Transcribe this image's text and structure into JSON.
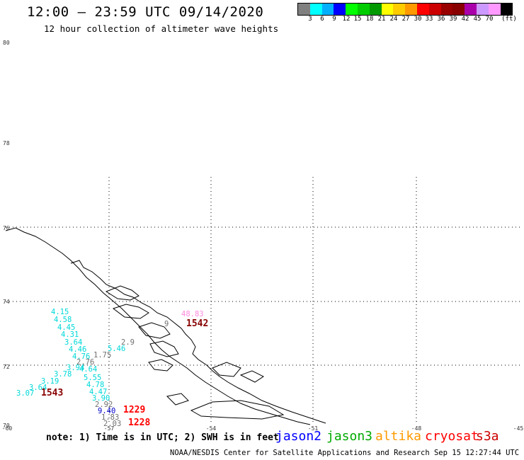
{
  "header": {
    "title": "12:00 – 23:59 UTC 09/14/2020",
    "subtitle": "12 hour collection of altimeter wave heights"
  },
  "colorbar": {
    "colors": [
      "#808080",
      "#00ffff",
      "#00b0ff",
      "#0000ff",
      "#00ff00",
      "#00cc00",
      "#009900",
      "#ffff00",
      "#ffcc00",
      "#ff9900",
      "#ff0000",
      "#cc0000",
      "#990000",
      "#880000",
      "#aa00aa",
      "#cc99ff",
      "#ff99ff",
      "#000000"
    ],
    "ticks": [
      "3",
      "6",
      "9",
      "12",
      "15",
      "18",
      "21",
      "24",
      "27",
      "30",
      "33",
      "36",
      "39",
      "42",
      "45",
      "70",
      "(ft)"
    ]
  },
  "axes": {
    "lat_labels": [
      "80",
      "78",
      "76",
      "74",
      "72",
      "70"
    ],
    "lon_labels": [
      "-60",
      "-57",
      "-54",
      "-51",
      "-48",
      "-45"
    ]
  },
  "wave_heights": [
    {
      "v": "4.15",
      "c": "#00d8d8"
    },
    {
      "v": "4.58",
      "c": "#00d8d8"
    },
    {
      "v": "4.45",
      "c": "#00d8d8"
    },
    {
      "v": "4.31",
      "c": "#00d8d8"
    },
    {
      "v": "3.64",
      "c": "#00d8d8"
    },
    {
      "v": "4.46",
      "c": "#00d8d8"
    },
    {
      "v": "4.76",
      "c": "#00d8d8"
    },
    {
      "v": "3.94",
      "c": "#00d8d8"
    },
    {
      "v": "3.78",
      "c": "#00d8d8"
    },
    {
      "v": "3.19",
      "c": "#00d8d8"
    },
    {
      "v": "3.64",
      "c": "#00d8d8"
    },
    {
      "v": "3.07",
      "c": "#00d8d8"
    },
    {
      "v": "5.46",
      "c": "#00d8d8"
    },
    {
      "v": "4.64",
      "c": "#00d8d8"
    },
    {
      "v": "5.55",
      "c": "#00d8d8"
    },
    {
      "v": "4.78",
      "c": "#00d8d8"
    },
    {
      "v": "4.47",
      "c": "#00d8d8"
    },
    {
      "v": "3.90",
      "c": "#00d8d8"
    },
    {
      "v": "1.75",
      "c": "#707070"
    },
    {
      "v": "2.76",
      "c": "#707070"
    },
    {
      "v": "2.92",
      "c": "#707070"
    },
    {
      "v": "2.9",
      "c": "#707070"
    },
    {
      "v": "1.83",
      "c": "#707070"
    },
    {
      "v": "2.03",
      "c": "#707070"
    },
    {
      "v": "9.40",
      "c": "#0000cc"
    },
    {
      "v": "48.83",
      "c": "#ff88dd"
    },
    {
      "v": "9",
      "c": "#707070"
    }
  ],
  "pass_ids": [
    {
      "v": "1542",
      "c": "#880000"
    },
    {
      "v": "1543",
      "c": "#880000"
    },
    {
      "v": "1229",
      "c": "#ff0000"
    },
    {
      "v": "1228",
      "c": "#ff0000"
    }
  ],
  "footer": {
    "note": "note: 1) Time is in UTC; 2) SWH is in feet",
    "satellites": [
      {
        "name": "jason2",
        "color": "#0000ff"
      },
      {
        "name": "jason3",
        "color": "#00aa00"
      },
      {
        "name": "altika",
        "color": "#ff9900"
      },
      {
        "name": "cryosat",
        "color": "#ff0000"
      },
      {
        "name": "s3a",
        "color": "#cc0000"
      }
    ],
    "credit": "NOAA/NESDIS Center for Satellite Applications and Research   Sep 15 12:27:44 UTC 2020"
  }
}
